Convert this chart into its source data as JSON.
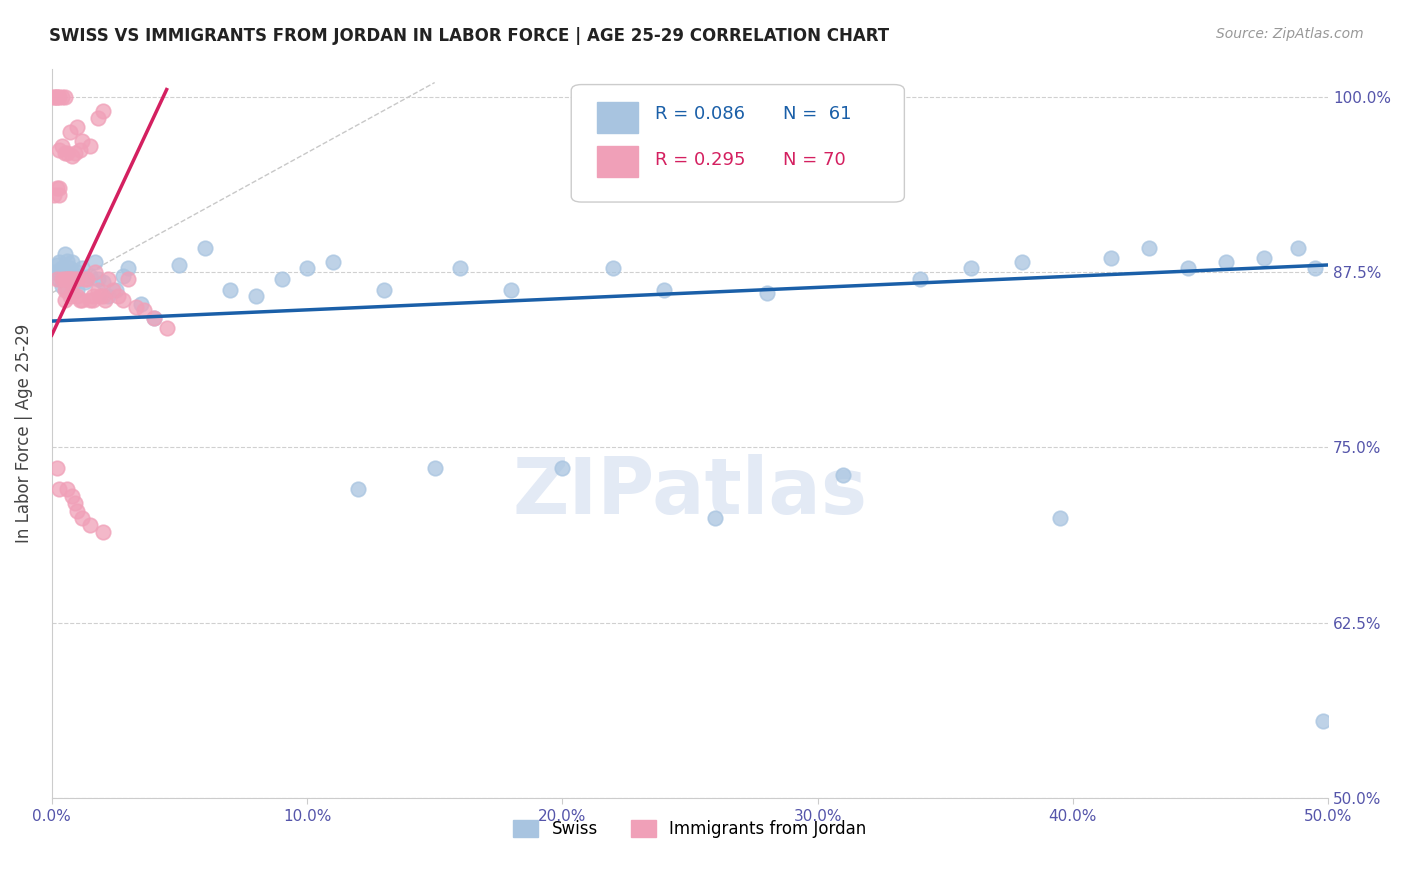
{
  "title": "SWISS VS IMMIGRANTS FROM JORDAN IN LABOR FORCE | AGE 25-29 CORRELATION CHART",
  "source": "Source: ZipAtlas.com",
  "ylabel": "In Labor Force | Age 25-29",
  "xmin": 0.0,
  "xmax": 0.5,
  "ymin": 0.5,
  "ymax": 1.02,
  "yticks": [
    0.5,
    0.625,
    0.75,
    0.875,
    1.0
  ],
  "ytick_labels": [
    "50.0%",
    "62.5%",
    "75.0%",
    "87.5%",
    "100.0%"
  ],
  "xticks": [
    0.0,
    0.1,
    0.2,
    0.3,
    0.4,
    0.5
  ],
  "xtick_labels": [
    "0.0%",
    "10.0%",
    "20.0%",
    "30.0%",
    "40.0%",
    "50.0%"
  ],
  "legend_r_swiss": "R = 0.086",
  "legend_n_swiss": "N =  61",
  "legend_r_jordan": "R = 0.295",
  "legend_n_jordan": "N = 70",
  "swiss_color": "#a8c4e0",
  "jordan_color": "#f0a0b8",
  "trend_swiss_color": "#1a5fa8",
  "trend_jordan_color": "#d42060",
  "diagonal_color": "#c8c8c8",
  "swiss_x": [
    0.002,
    0.003,
    0.004,
    0.005,
    0.006,
    0.007,
    0.008,
    0.009,
    0.01,
    0.011,
    0.012,
    0.013,
    0.015,
    0.017,
    0.018,
    0.02,
    0.022,
    0.025,
    0.028,
    0.03,
    0.033,
    0.038,
    0.042,
    0.048,
    0.055,
    0.065,
    0.075,
    0.085,
    0.1,
    0.12,
    0.14,
    0.16,
    0.185,
    0.21,
    0.24,
    0.265,
    0.29,
    0.315,
    0.34,
    0.365,
    0.39,
    0.41,
    0.425,
    0.435,
    0.445,
    0.455,
    0.465,
    0.475,
    0.48,
    0.485,
    0.49,
    0.495,
    0.2,
    0.25,
    0.3,
    0.35,
    0.4,
    0.42,
    0.35,
    0.49,
    0.495
  ],
  "swiss_y": [
    0.885,
    0.88,
    0.875,
    0.882,
    0.87,
    0.878,
    0.865,
    0.888,
    0.875,
    0.883,
    0.87,
    0.878,
    0.872,
    0.882,
    0.87,
    0.868,
    0.858,
    0.862,
    0.872,
    0.878,
    0.868,
    0.872,
    0.86,
    0.858,
    0.852,
    0.842,
    0.88,
    0.892,
    0.872,
    0.882,
    0.72,
    0.878,
    0.862,
    0.735,
    0.878,
    0.7,
    0.862,
    0.73,
    0.87,
    0.878,
    0.882,
    0.7,
    0.872,
    0.885,
    0.892,
    0.878,
    0.882,
    0.878,
    0.885,
    0.892,
    0.882,
    0.878,
    0.88,
    0.87,
    0.86,
    0.855,
    0.865,
    0.88,
    0.89,
    0.555,
    0.88
  ],
  "jordan_x": [
    0.001,
    0.001,
    0.002,
    0.002,
    0.003,
    0.003,
    0.004,
    0.005,
    0.005,
    0.006,
    0.006,
    0.007,
    0.007,
    0.008,
    0.008,
    0.009,
    0.009,
    0.01,
    0.01,
    0.011,
    0.012,
    0.012,
    0.013,
    0.014,
    0.015,
    0.015,
    0.016,
    0.017,
    0.018,
    0.019,
    0.02,
    0.021,
    0.022,
    0.023,
    0.025,
    0.027,
    0.03,
    0.033,
    0.036,
    0.04,
    0.045,
    0.05,
    0.055,
    0.01,
    0.012,
    0.013,
    0.014,
    0.015,
    0.016,
    0.017,
    0.018,
    0.019,
    0.02,
    0.008,
    0.009,
    0.01,
    0.011,
    0.012,
    0.015,
    0.006,
    0.007,
    0.003,
    0.004,
    0.002,
    0.002,
    0.003,
    0.018,
    0.02,
    0.007,
    0.005
  ],
  "jordan_y": [
    0.875,
    0.868,
    0.875,
    0.87,
    0.872,
    0.865,
    0.87,
    0.875,
    0.865,
    0.88,
    0.875,
    0.862,
    0.875,
    0.87,
    0.862,
    0.868,
    0.86,
    0.875,
    0.862,
    0.86,
    0.858,
    0.862,
    0.868,
    0.872,
    0.87,
    0.862,
    0.858,
    0.87,
    0.875,
    0.868,
    0.862,
    0.86,
    0.868,
    0.858,
    0.862,
    0.855,
    0.87,
    0.855,
    0.852,
    0.855,
    0.848,
    0.842,
    0.835,
    0.855,
    0.962,
    0.968,
    0.975,
    0.965,
    0.972,
    0.96,
    0.985,
    0.978,
    0.99,
    0.96,
    1.0,
    1.0,
    1.0,
    1.0,
    1.0,
    1.0,
    1.0,
    1.0,
    1.0,
    1.0,
    0.93,
    0.93,
    0.935,
    0.93,
    0.935,
    0.935
  ],
  "watermark": "ZIPatlas",
  "background_color": "#ffffff",
  "grid_color": "#d0d0d0"
}
